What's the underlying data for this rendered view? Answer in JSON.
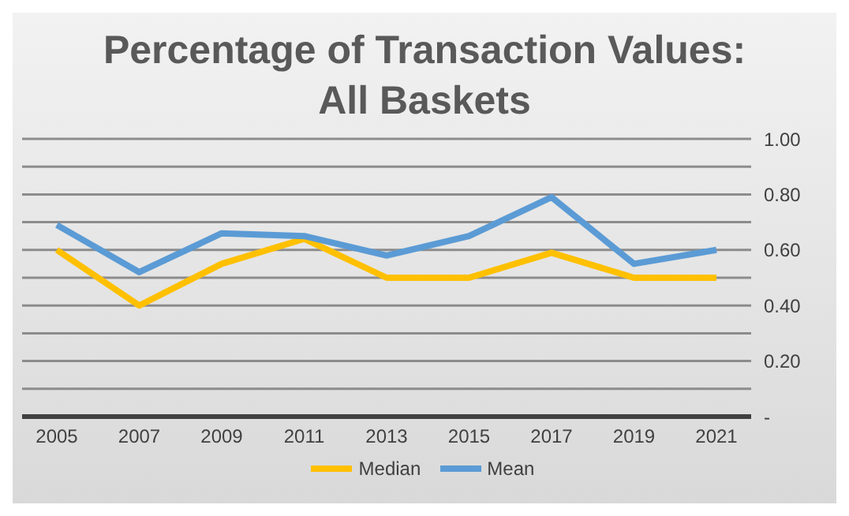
{
  "chart_data": {
    "type": "line",
    "title": "Percentage of Transaction Values: All Baskets",
    "categories": [
      "2005",
      "2007",
      "2009",
      "2011",
      "2013",
      "2015",
      "2017",
      "2019",
      "2021"
    ],
    "series": [
      {
        "name": "Median",
        "color": "#ffc000",
        "values": [
          0.6,
          0.4,
          0.55,
          0.64,
          0.5,
          0.5,
          0.59,
          0.5,
          0.5
        ]
      },
      {
        "name": "Mean",
        "color": "#5b9bd5",
        "values": [
          0.69,
          0.52,
          0.66,
          0.65,
          0.58,
          0.65,
          0.79,
          0.55,
          0.6
        ]
      }
    ],
    "ylim": [
      0,
      1
    ],
    "yticks": [
      {
        "value": 0,
        "label": "-"
      },
      {
        "value": 0.1,
        "label": null
      },
      {
        "value": 0.2,
        "label": "0.20"
      },
      {
        "value": 0.3,
        "label": null
      },
      {
        "value": 0.4,
        "label": "0.40"
      },
      {
        "value": 0.5,
        "label": null
      },
      {
        "value": 0.6,
        "label": "0.60"
      },
      {
        "value": 0.7,
        "label": null
      },
      {
        "value": 0.8,
        "label": "0.80"
      },
      {
        "value": 0.9,
        "label": null
      },
      {
        "value": 1,
        "label": "1.00"
      }
    ],
    "grid": "y",
    "legend": "bottom",
    "marker": "none",
    "line_style": "solid"
  }
}
